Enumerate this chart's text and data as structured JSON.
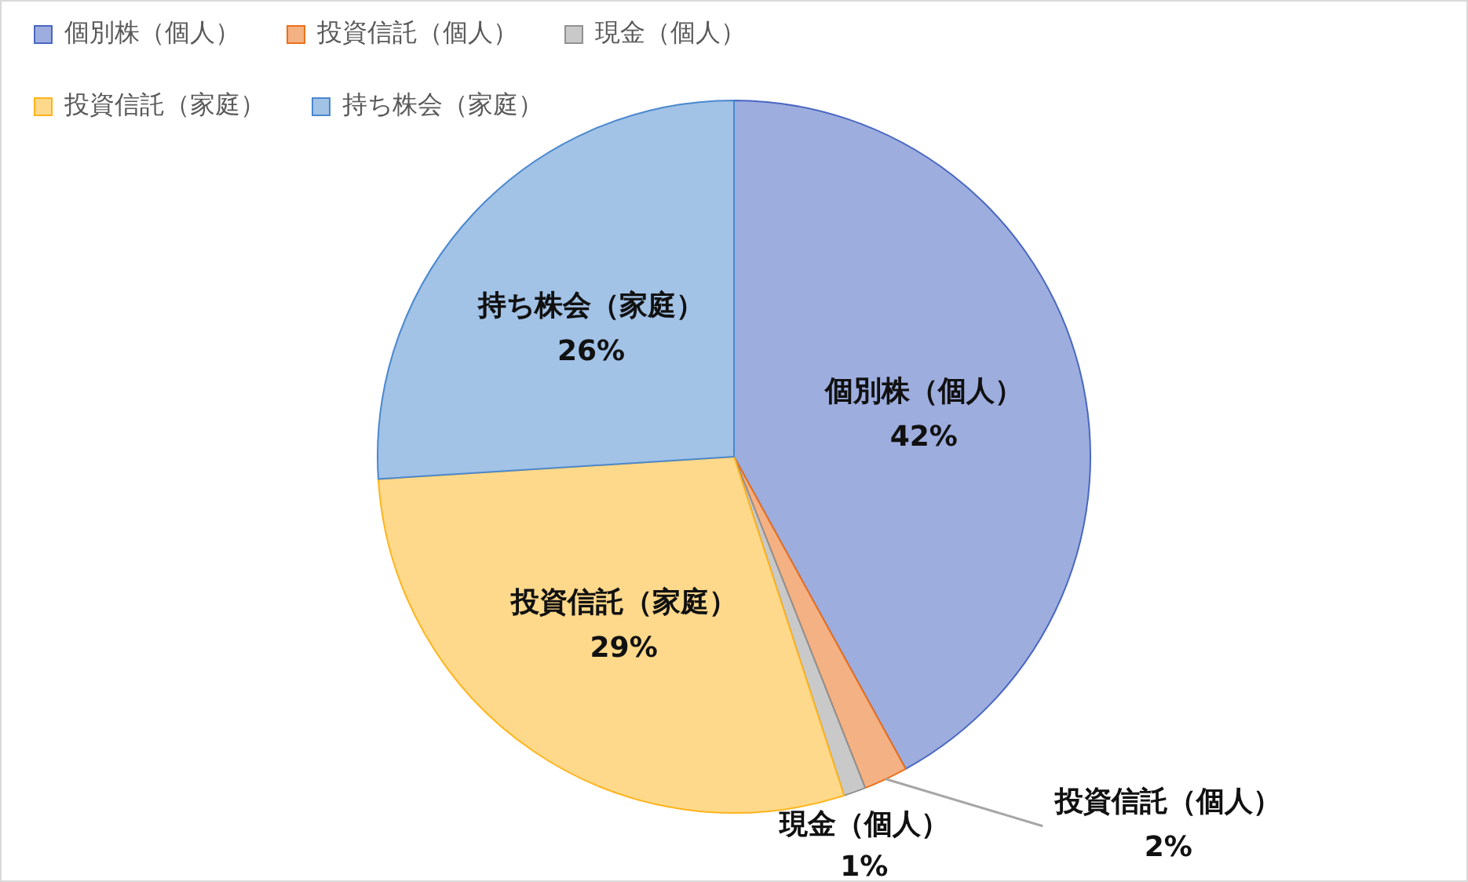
{
  "chart_data": {
    "type": "pie",
    "categories": [
      "個別株（個人）",
      "投資信託（個人）",
      "現金（個人）",
      "投資信託（家庭）",
      "持ち株会（家庭）"
    ],
    "values": [
      42,
      2,
      1,
      29,
      26
    ],
    "colors": [
      "#9dadde",
      "#f4b183",
      "#c9c9c9",
      "#ffd98b",
      "#a2c2e6"
    ],
    "value_labels": [
      "42%",
      "2%",
      "1%",
      "29%",
      "26%"
    ],
    "legend": "top left"
  }
}
